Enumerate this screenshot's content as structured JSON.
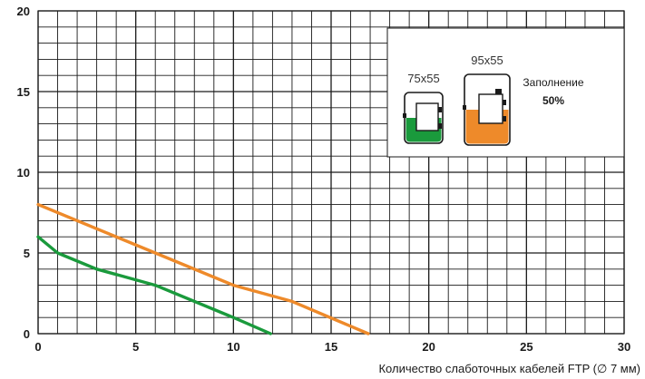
{
  "chart_data": {
    "type": "line",
    "xlabel": "Количество слаботочных кабелей FTP (∅ 7 мм)",
    "ylabel": "",
    "xlim": [
      0,
      30
    ],
    "ylim": [
      0,
      20
    ],
    "x_ticks": [
      0,
      5,
      10,
      15,
      20,
      25,
      30
    ],
    "x_tick_labels": [
      "0",
      "5",
      "10",
      "15",
      "20",
      "25",
      "30"
    ],
    "y_ticks": [
      0,
      5,
      10,
      15,
      20
    ],
    "y_tick_labels": [
      "0",
      "5",
      "10",
      "15",
      "20"
    ],
    "grid": true,
    "minor_step": 1,
    "series": [
      {
        "name": "75x55",
        "color": "#1a9a3c",
        "x": [
          0,
          1,
          3,
          6,
          10,
          11.9
        ],
        "y": [
          6,
          5,
          4,
          3,
          1,
          0
        ]
      },
      {
        "name": "95x55",
        "color": "#ee8a2a",
        "x": [
          0,
          10,
          13,
          16.9
        ],
        "y": [
          8,
          3,
          2,
          0
        ]
      }
    ],
    "legend": {
      "position": "top-right",
      "fill_label": "Заполнение",
      "fill_value": "50%"
    }
  }
}
